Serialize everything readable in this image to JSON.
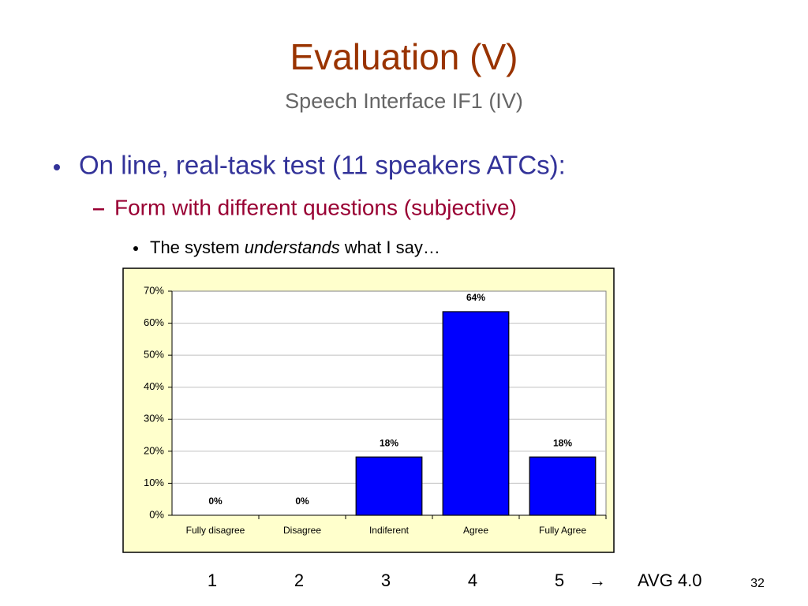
{
  "slide": {
    "title": "Evaluation (V)",
    "subtitle": "Speech Interface IF1 (IV)",
    "bullet": "On line, real-task test (11 speakers ATCs):",
    "sub_bullet": "Form with different questions (subjective)",
    "sub_sub_bullet": [
      "The system",
      "understands",
      "what I say…"
    ],
    "scale": [
      "1",
      "2",
      "3",
      "4",
      "5"
    ],
    "arrow": "→",
    "average": "AVG 4.0",
    "page_number": "32"
  },
  "chart_data": {
    "type": "bar",
    "categories": [
      "Fully disagree",
      "Disagree",
      "Indiferent",
      "Agree",
      "Fully Agree"
    ],
    "values": [
      0,
      0,
      18.2,
      63.6,
      18.2
    ],
    "value_labels": [
      "0%",
      "0%",
      "18%",
      "64%",
      "18%"
    ],
    "color": "#0000ff",
    "ylim": [
      0,
      70
    ],
    "yticks": [
      {
        "value": 0,
        "label": "0%"
      },
      {
        "value": 10,
        "label": "10%"
      },
      {
        "value": 20,
        "label": "20%"
      },
      {
        "value": 30,
        "label": "30%"
      },
      {
        "value": 40,
        "label": "40%"
      },
      {
        "value": 50,
        "label": "50%"
      },
      {
        "value": 60,
        "label": "60%"
      },
      {
        "value": 70,
        "label": "70%"
      }
    ],
    "grid": true
  }
}
